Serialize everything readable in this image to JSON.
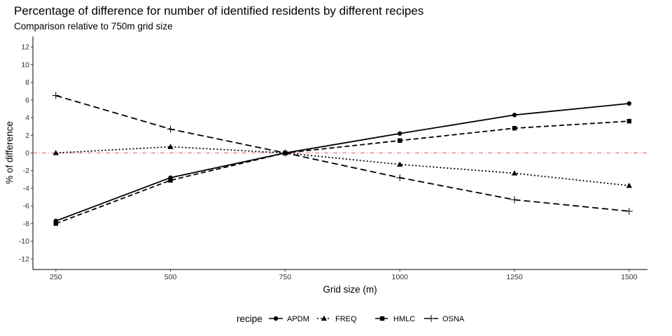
{
  "chart_data": {
    "type": "line",
    "title": "Percentage of difference for number of identified residents by different recipes",
    "subtitle": "Comparison relative to 750m grid size",
    "xlabel": "Grid size (m)",
    "ylabel": "% of difference",
    "x": [
      250,
      500,
      750,
      1000,
      1250,
      1500
    ],
    "xlim": [
      200,
      1540
    ],
    "ylim": [
      -13.2,
      13.2
    ],
    "xticks": [
      250,
      500,
      750,
      1000,
      1250,
      1500
    ],
    "yticks": [
      -12,
      -10,
      -8,
      -6,
      -4,
      -2,
      0,
      2,
      4,
      6,
      8,
      10,
      12
    ],
    "reference_line": {
      "y": 0,
      "color": "#e06666",
      "style": "dash-dot"
    },
    "legend": {
      "title": "recipe",
      "placement": "bottom"
    },
    "series": [
      {
        "name": "APDM",
        "values": [
          -7.7,
          -2.8,
          0,
          2.2,
          4.3,
          5.6
        ],
        "linestyle": "solid",
        "marker": "circle"
      },
      {
        "name": "FREQ",
        "values": [
          0,
          0.7,
          0,
          -1.3,
          -2.3,
          -3.7
        ],
        "linestyle": "dotted",
        "marker": "triangle"
      },
      {
        "name": "HMLC",
        "values": [
          -8.0,
          -3.1,
          0,
          1.4,
          2.8,
          3.6
        ],
        "linestyle": "dashed",
        "marker": "square"
      },
      {
        "name": "OSNA",
        "values": [
          6.5,
          2.7,
          0,
          -2.8,
          -5.3,
          -6.6
        ],
        "linestyle": "longdash",
        "marker": "plus"
      }
    ]
  }
}
